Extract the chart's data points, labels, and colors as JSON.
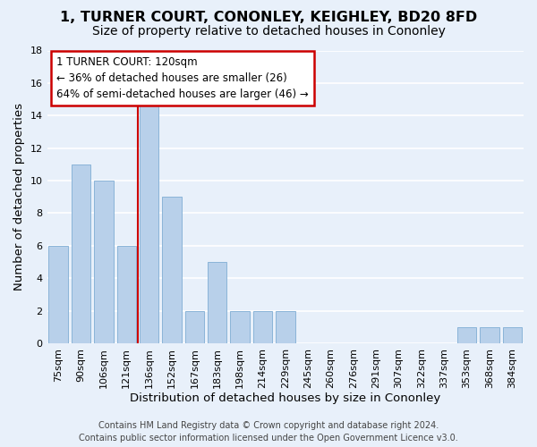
{
  "title": "1, TURNER COURT, CONONLEY, KEIGHLEY, BD20 8FD",
  "subtitle": "Size of property relative to detached houses in Cononley",
  "xlabel": "Distribution of detached houses by size in Cononley",
  "ylabel": "Number of detached properties",
  "bar_labels": [
    "75sqm",
    "90sqm",
    "106sqm",
    "121sqm",
    "136sqm",
    "152sqm",
    "167sqm",
    "183sqm",
    "198sqm",
    "214sqm",
    "229sqm",
    "245sqm",
    "260sqm",
    "276sqm",
    "291sqm",
    "307sqm",
    "322sqm",
    "337sqm",
    "353sqm",
    "368sqm",
    "384sqm"
  ],
  "bar_heights": [
    6,
    11,
    10,
    6,
    15,
    9,
    2,
    5,
    2,
    2,
    2,
    0,
    0,
    0,
    0,
    0,
    0,
    0,
    1,
    1,
    1
  ],
  "bar_color": "#b8d0ea",
  "bar_edgecolor": "#8ab4d8",
  "annotation_line1": "1 TURNER COURT: 120sqm",
  "annotation_line2": "← 36% of detached houses are smaller (26)",
  "annotation_line3": "64% of semi-detached houses are larger (46) →",
  "annotation_box_color": "white",
  "annotation_box_edgecolor": "#cc0000",
  "vline_color": "#cc0000",
  "vline_x": 3.5,
  "ylim": [
    0,
    18
  ],
  "yticks": [
    0,
    2,
    4,
    6,
    8,
    10,
    12,
    14,
    16,
    18
  ],
  "footer_line1": "Contains HM Land Registry data © Crown copyright and database right 2024.",
  "footer_line2": "Contains public sector information licensed under the Open Government Licence v3.0.",
  "bg_color": "#e8f0fa",
  "grid_color": "white",
  "title_fontsize": 11.5,
  "subtitle_fontsize": 10,
  "axis_label_fontsize": 9.5,
  "tick_fontsize": 8,
  "annotation_fontsize": 8.5,
  "footer_fontsize": 7
}
